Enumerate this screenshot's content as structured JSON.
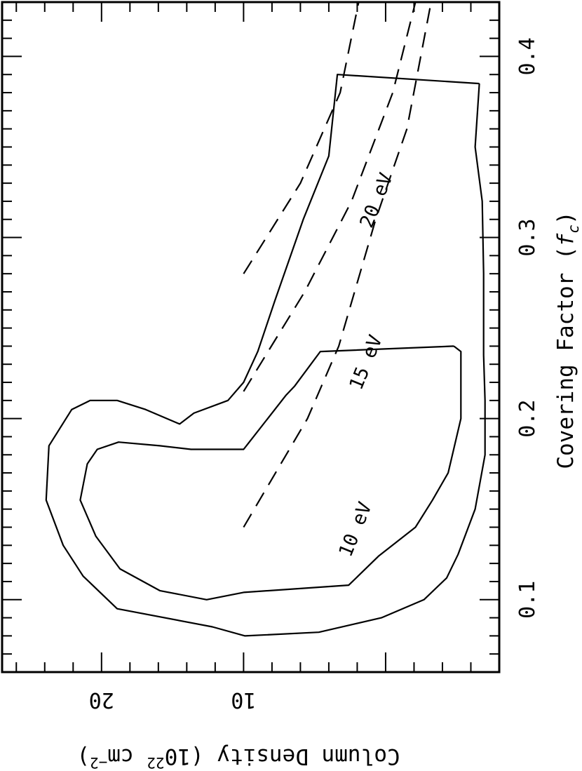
{
  "chart_data": {
    "type": "contour",
    "x_axis": {
      "label": "Covering Factor (",
      "label_symbol": "f",
      "label_subscript": "c",
      "label_close": ")",
      "range": [
        0.06,
        0.43
      ],
      "ticks": [
        0.1,
        0.2,
        0.3,
        0.4
      ],
      "tick_labels": [
        "0.1",
        "0.2",
        "0.3",
        "0.4"
      ]
    },
    "y_axis": {
      "label_prefix": "Column Density (10",
      "label_exponent": "22",
      "label_suffix": " cm",
      "label_unit_exponent": "−2",
      "label_close": ")",
      "range": [
        -8,
        27
      ],
      "ticks": [
        10,
        20
      ],
      "tick_labels": [
        "10",
        "20"
      ]
    },
    "contours": [
      {
        "level": "outer",
        "points": [
          [
            0.385,
            -6.6
          ],
          [
            0.35,
            -6.3
          ],
          [
            0.32,
            -6.8
          ],
          [
            0.28,
            -6.9
          ],
          [
            0.235,
            -6.9
          ],
          [
            0.21,
            -7.0
          ],
          [
            0.18,
            -7.0
          ],
          [
            0.15,
            -6.3
          ],
          [
            0.125,
            -5.1
          ],
          [
            0.112,
            -4.3
          ],
          [
            0.1,
            -2.7
          ],
          [
            0.09,
            0.3
          ],
          [
            0.082,
            4.7
          ],
          [
            0.08,
            9.9
          ],
          [
            0.085,
            12.2
          ],
          [
            0.095,
            18.9
          ],
          [
            0.113,
            21.3
          ],
          [
            0.13,
            22.7
          ],
          [
            0.155,
            23.9
          ],
          [
            0.185,
            23.7
          ],
          [
            0.205,
            22.1
          ],
          [
            0.21,
            20.8
          ],
          [
            0.21,
            18.9
          ],
          [
            0.205,
            16.9
          ],
          [
            0.197,
            14.5
          ],
          [
            0.203,
            13.5
          ],
          [
            0.21,
            11.1
          ],
          [
            0.22,
            10.0
          ],
          [
            0.237,
            9.0
          ],
          [
            0.265,
            7.8
          ],
          [
            0.31,
            5.8
          ],
          [
            0.345,
            4.0
          ],
          [
            0.39,
            3.4
          ],
          [
            0.385,
            -6.6
          ]
        ]
      },
      {
        "level": "inner",
        "points": [
          [
            0.24,
            -4.8
          ],
          [
            0.237,
            -5.3
          ],
          [
            0.2,
            -5.3
          ],
          [
            0.17,
            -4.4
          ],
          [
            0.155,
            -3.3
          ],
          [
            0.14,
            -2.1
          ],
          [
            0.124,
            0.5
          ],
          [
            0.108,
            2.6
          ],
          [
            0.104,
            10.0
          ],
          [
            0.1,
            12.6
          ],
          [
            0.105,
            15.9
          ],
          [
            0.117,
            18.7
          ],
          [
            0.135,
            20.4
          ],
          [
            0.155,
            21.5
          ],
          [
            0.175,
            21.0
          ],
          [
            0.183,
            20.3
          ],
          [
            0.187,
            18.8
          ],
          [
            0.185,
            15.9
          ],
          [
            0.183,
            13.7
          ],
          [
            0.183,
            10.0
          ],
          [
            0.187,
            9.6
          ],
          [
            0.213,
            7.0
          ],
          [
            0.218,
            6.4
          ],
          [
            0.237,
            4.6
          ],
          [
            0.24,
            -4.8
          ]
        ]
      }
    ],
    "dashed_curves": [
      {
        "label": "10 eV",
        "points": [
          [
            0.14,
            10.0
          ],
          [
            0.2,
            5.5
          ],
          [
            0.24,
            3.3
          ],
          [
            0.31,
            0.7
          ],
          [
            0.36,
            -1.5
          ],
          [
            0.43,
            -3.2
          ]
        ]
      },
      {
        "label": "15 eV",
        "points": [
          [
            0.215,
            10.0
          ],
          [
            0.27,
            5.7
          ],
          [
            0.32,
            2.4
          ],
          [
            0.38,
            -0.5
          ],
          [
            0.43,
            -2.1
          ]
        ]
      },
      {
        "label": "20 eV",
        "points": [
          [
            0.28,
            10.0
          ],
          [
            0.33,
            6.0
          ],
          [
            0.38,
            3.2
          ],
          [
            0.43,
            1.9
          ]
        ]
      }
    ],
    "annotations": [
      "10 eV",
      "15 eV",
      "20 eV"
    ]
  }
}
